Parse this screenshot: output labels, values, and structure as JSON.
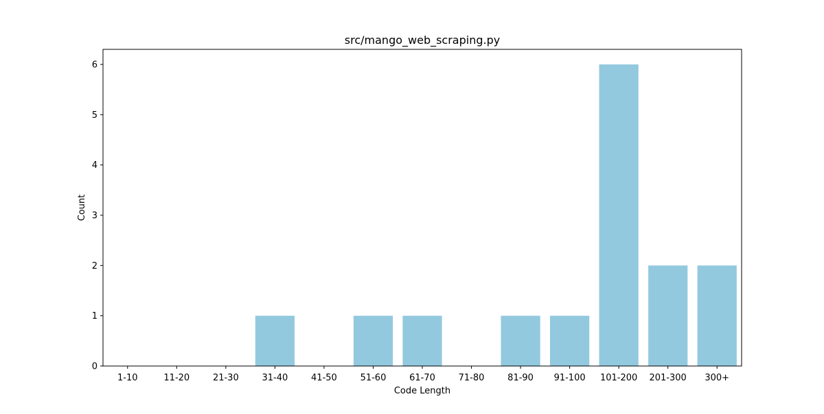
{
  "chart_data": {
    "type": "bar",
    "title": "src/mango_web_scraping.py",
    "xlabel": "Code Length",
    "ylabel": "Count",
    "categories": [
      "1-10",
      "11-20",
      "21-30",
      "31-40",
      "41-50",
      "51-60",
      "61-70",
      "71-80",
      "81-90",
      "91-100",
      "101-200",
      "201-300",
      "300+"
    ],
    "values": [
      0,
      0,
      0,
      1,
      0,
      1,
      1,
      0,
      1,
      1,
      6,
      2,
      2
    ],
    "ylim": [
      0,
      6.3
    ],
    "yticks": [
      0,
      1,
      2,
      3,
      4,
      5,
      6
    ],
    "bar_color": "#92c9df",
    "grid": false,
    "legend": "none"
  }
}
